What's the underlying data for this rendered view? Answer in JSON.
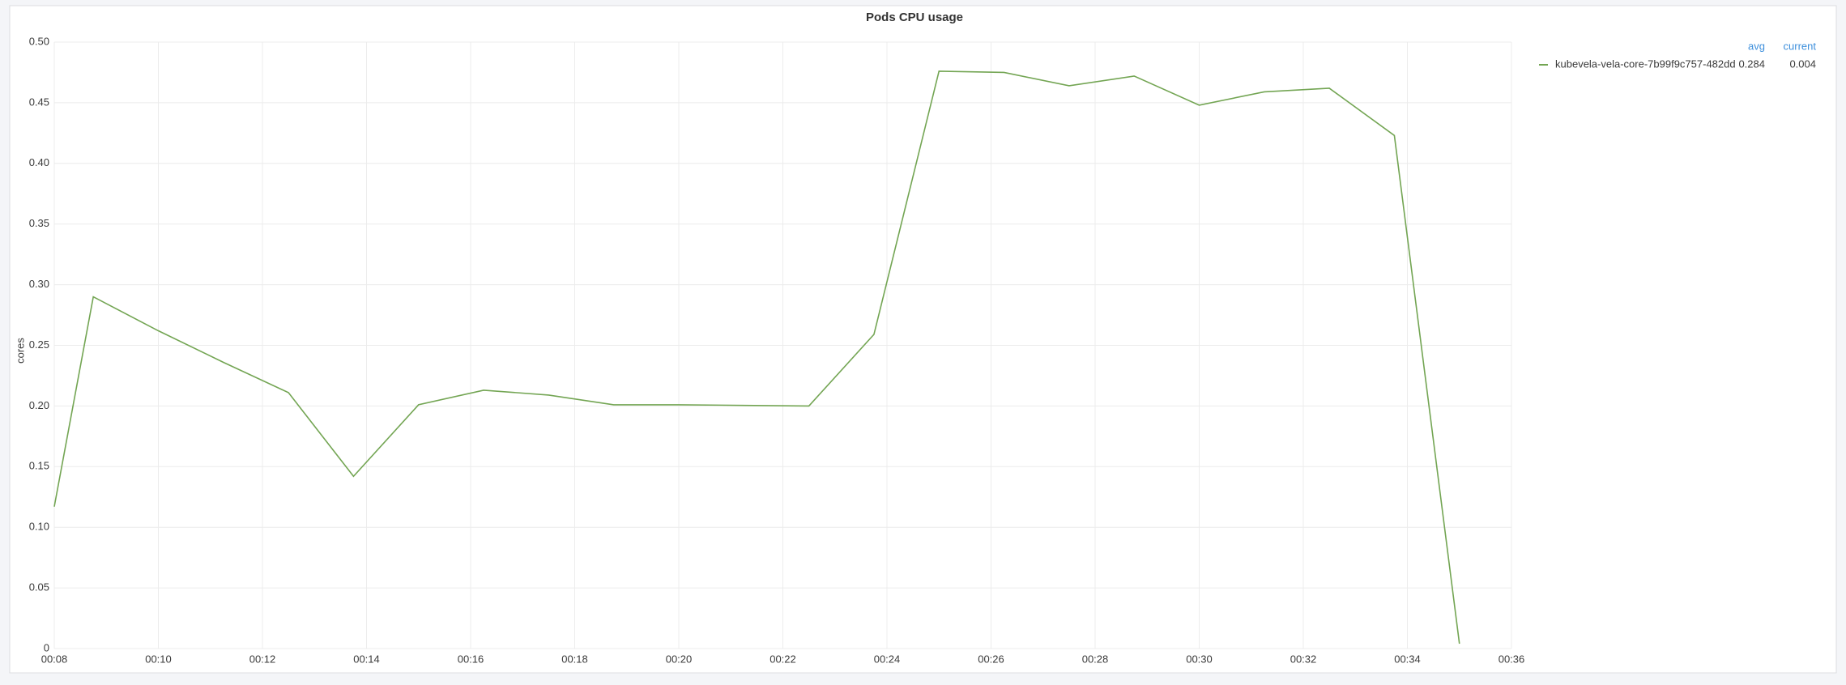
{
  "chart_data": {
    "type": "line",
    "title": "Pods CPU usage",
    "y_label": "cores",
    "x": [
      8,
      8.75,
      10,
      11.25,
      12.5,
      13.75,
      15,
      16.25,
      17.5,
      18.75,
      20,
      21.25,
      22.5,
      23.75,
      25,
      26.25,
      27.5,
      28.75,
      30,
      31.25,
      32.5,
      33.75,
      35
    ],
    "series": [
      {
        "name": "kubevela-vela-core-7b99f9c757-482dd",
        "color": "#73a553",
        "values": [
          0.117,
          0.29,
          0.262,
          0.236,
          0.211,
          0.142,
          0.201,
          0.213,
          0.209,
          0.201,
          0.201,
          0.2005,
          0.2,
          0.259,
          0.476,
          0.475,
          0.464,
          0.472,
          0.448,
          0.459,
          0.462,
          0.423,
          0.004
        ],
        "stats": [
          0.284,
          0.004
        ]
      }
    ],
    "legend_columns": [
      "avg",
      "current"
    ],
    "xlim": [
      8,
      36
    ],
    "xticks": [
      {
        "value": 8,
        "label": "00:08"
      },
      {
        "value": 10,
        "label": "00:10"
      },
      {
        "value": 12,
        "label": "00:12"
      },
      {
        "value": 14,
        "label": "00:14"
      },
      {
        "value": 16,
        "label": "00:16"
      },
      {
        "value": 18,
        "label": "00:18"
      },
      {
        "value": 20,
        "label": "00:20"
      },
      {
        "value": 22,
        "label": "00:22"
      },
      {
        "value": 24,
        "label": "00:24"
      },
      {
        "value": 26,
        "label": "00:26"
      },
      {
        "value": 28,
        "label": "00:28"
      },
      {
        "value": 30,
        "label": "00:30"
      },
      {
        "value": 32,
        "label": "00:32"
      },
      {
        "value": 34,
        "label": "00:34"
      },
      {
        "value": 36,
        "label": "00:36"
      }
    ],
    "ylim": [
      0,
      0.5
    ],
    "yticks": [
      0,
      0.05,
      {
        "value": 0.1,
        "label": "0.10"
      },
      0.15,
      {
        "value": 0.2,
        "label": "0.20"
      },
      0.25,
      {
        "value": 0.3,
        "label": "0.30"
      },
      0.35,
      {
        "value": 0.4,
        "label": "0.40"
      },
      0.45,
      {
        "value": 0.5,
        "label": "0.50"
      }
    ],
    "grid": true
  }
}
